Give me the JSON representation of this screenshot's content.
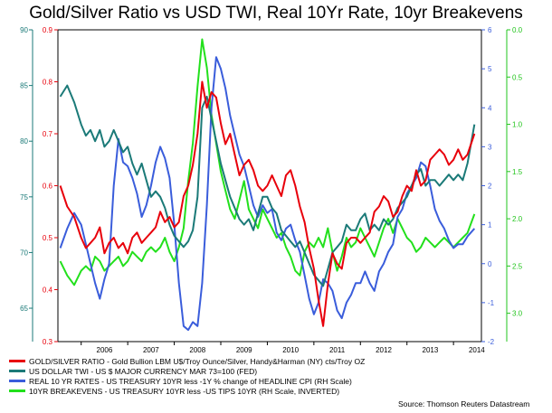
{
  "title": "Gold/Silver Ratio vs USD TWI, Real 10Yr Rate, 10yr Breakevens",
  "source": "Source: Thomson Reuters Datastream",
  "colors": {
    "gold_silver": "#e8000b",
    "usd_twi": "#1b7a78",
    "real_rate": "#3a5ddb",
    "breakevens": "#22e01c",
    "outer_axis_left": "#1b7a78",
    "inner_axis_left": "#e8000b",
    "inner_axis_right": "#3a5ddb",
    "outer_axis_right": "#22c41c"
  },
  "legend": [
    {
      "label": "GOLD/SILVER RATIO - Gold Bullion LBM U$/Troy Ounce/Silver, Handy&Harman (NY) cts/Troy OZ",
      "color": "#e8000b"
    },
    {
      "label": "US DOLLAR TWI - US $ MAJOR CURRENCY MAR 73=100 (FED)",
      "color": "#1b7a78"
    },
    {
      "label": "REAL 10 YR RATES - US TREASURY 10YR less -1Y % change of HEADLINE CPI  (RH Scale)",
      "color": "#3a5ddb"
    },
    {
      "label": "10YR BREAKEVENS - US TREASURY 10YR less -US TIPS 10YR (RH Scale, INVERTED)",
      "color": "#22e01c"
    }
  ],
  "chart_data": {
    "type": "line",
    "x_tick_labels": [
      "2006",
      "2007",
      "2008",
      "2009",
      "2010",
      "2011",
      "2012",
      "2013",
      "2014"
    ],
    "x_range": [
      2005.5,
      2014.6
    ],
    "axes": {
      "outer_left": {
        "series": "US DOLLAR TWI",
        "range": [
          62,
          90
        ],
        "ticks": [
          "90",
          "85",
          "80",
          "75",
          "70",
          "65"
        ]
      },
      "inner_left": {
        "series": "GOLD/SILVER RATIO",
        "range": [
          0.3,
          0.9
        ],
        "ticks": [
          "0.9",
          "0.8",
          "0.7",
          "0.6",
          "0.5",
          "0.4",
          "0.3"
        ]
      },
      "inner_right": {
        "series": "REAL 10 YR RATES",
        "range": [
          -2,
          6
        ],
        "ticks": [
          "6",
          "5",
          "4",
          "3",
          "2",
          "1",
          "0",
          "-1",
          "-2"
        ]
      },
      "outer_right": {
        "series": "10YR BREAKEVENS",
        "range": [
          0.0,
          3.3
        ],
        "inverted": true,
        "ticks": [
          "0.0",
          "0.5",
          "1.0",
          "1.5",
          "2.0",
          "2.5",
          "3.0"
        ]
      }
    },
    "grid": false,
    "series": [
      {
        "name": "GOLD/SILVER RATIO - Gold Bullion LBM U$/Troy Ounce/Silver, Handy&Harman (NY) cts/Troy OZ",
        "axis": "inner_left",
        "x": [
          2005.55,
          2005.7,
          2005.85,
          2006.0,
          2006.1,
          2006.2,
          2006.3,
          2006.4,
          2006.5,
          2006.6,
          2006.7,
          2006.8,
          2006.9,
          2007.0,
          2007.1,
          2007.2,
          2007.3,
          2007.4,
          2007.5,
          2007.6,
          2007.7,
          2007.8,
          2007.9,
          2008.0,
          2008.1,
          2008.2,
          2008.3,
          2008.4,
          2008.5,
          2008.6,
          2008.7,
          2008.8,
          2008.9,
          2009.0,
          2009.1,
          2009.2,
          2009.3,
          2009.4,
          2009.5,
          2009.6,
          2009.7,
          2009.8,
          2009.9,
          2010.0,
          2010.1,
          2010.2,
          2010.3,
          2010.4,
          2010.5,
          2010.6,
          2010.7,
          2010.8,
          2010.9,
          2011.0,
          2011.1,
          2011.2,
          2011.3,
          2011.4,
          2011.5,
          2011.6,
          2011.7,
          2011.8,
          2011.9,
          2012.0,
          2012.1,
          2012.2,
          2012.3,
          2012.4,
          2012.5,
          2012.6,
          2012.7,
          2012.8,
          2012.9,
          2013.0,
          2013.1,
          2013.2,
          2013.3,
          2013.4,
          2013.5,
          2013.6,
          2013.7,
          2013.8,
          2013.9,
          2014.0,
          2014.1,
          2014.2,
          2014.3,
          2014.45
        ],
        "y": [
          0.6,
          0.56,
          0.54,
          0.5,
          0.48,
          0.49,
          0.5,
          0.52,
          0.47,
          0.49,
          0.5,
          0.48,
          0.49,
          0.47,
          0.5,
          0.51,
          0.49,
          0.5,
          0.51,
          0.52,
          0.55,
          0.53,
          0.54,
          0.52,
          0.53,
          0.58,
          0.6,
          0.64,
          0.7,
          0.8,
          0.75,
          0.78,
          0.77,
          0.72,
          0.68,
          0.7,
          0.66,
          0.62,
          0.64,
          0.65,
          0.63,
          0.6,
          0.59,
          0.6,
          0.62,
          0.6,
          0.58,
          0.62,
          0.63,
          0.6,
          0.56,
          0.53,
          0.48,
          0.44,
          0.38,
          0.33,
          0.41,
          0.47,
          0.45,
          0.44,
          0.49,
          0.5,
          0.5,
          0.49,
          0.5,
          0.51,
          0.55,
          0.56,
          0.58,
          0.57,
          0.54,
          0.55,
          0.58,
          0.6,
          0.59,
          0.63,
          0.6,
          0.61,
          0.65,
          0.66,
          0.67,
          0.66,
          0.64,
          0.65,
          0.67,
          0.65,
          0.66,
          0.7
        ]
      },
      {
        "name": "US DOLLAR TWI - US $ MAJOR CURRENCY MAR 73=100 (FED)",
        "axis": "outer_left",
        "x": [
          2005.55,
          2005.7,
          2005.85,
          2006.0,
          2006.1,
          2006.2,
          2006.3,
          2006.4,
          2006.5,
          2006.6,
          2006.7,
          2006.8,
          2006.9,
          2007.0,
          2007.1,
          2007.2,
          2007.3,
          2007.4,
          2007.5,
          2007.6,
          2007.7,
          2007.8,
          2007.9,
          2008.0,
          2008.1,
          2008.2,
          2008.3,
          2008.4,
          2008.5,
          2008.6,
          2008.7,
          2008.8,
          2008.9,
          2009.0,
          2009.1,
          2009.2,
          2009.3,
          2009.4,
          2009.5,
          2009.6,
          2009.7,
          2009.8,
          2009.9,
          2010.0,
          2010.1,
          2010.2,
          2010.3,
          2010.4,
          2010.5,
          2010.6,
          2010.7,
          2010.8,
          2010.9,
          2011.0,
          2011.1,
          2011.2,
          2011.3,
          2011.4,
          2011.5,
          2011.6,
          2011.7,
          2011.8,
          2011.9,
          2012.0,
          2012.1,
          2012.2,
          2012.3,
          2012.4,
          2012.5,
          2012.6,
          2012.7,
          2012.8,
          2012.9,
          2013.0,
          2013.1,
          2013.2,
          2013.3,
          2013.4,
          2013.5,
          2013.6,
          2013.7,
          2013.8,
          2013.9,
          2014.0,
          2014.1,
          2014.2,
          2014.3,
          2014.45
        ],
        "y": [
          84.0,
          85.0,
          83.5,
          81.5,
          80.5,
          81.0,
          80.0,
          81.0,
          79.5,
          80.0,
          81.0,
          80.0,
          79.0,
          79.5,
          78.0,
          77.0,
          78.0,
          76.5,
          75.0,
          75.5,
          75.0,
          74.0,
          72.5,
          71.5,
          71.0,
          70.5,
          71.0,
          72.0,
          75.0,
          83.0,
          84.0,
          82.0,
          80.0,
          78.0,
          76.5,
          75.0,
          74.0,
          73.0,
          72.5,
          73.0,
          72.0,
          73.5,
          75.0,
          75.0,
          74.0,
          73.5,
          72.0,
          71.5,
          71.0,
          70.5,
          71.0,
          70.0,
          69.0,
          68.0,
          67.5,
          67.0,
          68.5,
          70.0,
          70.5,
          71.0,
          72.5,
          72.0,
          72.0,
          73.0,
          73.5,
          72.0,
          72.5,
          72.0,
          73.0,
          72.5,
          73.0,
          74.0,
          74.5,
          75.0,
          76.0,
          77.0,
          77.5,
          76.0,
          76.5,
          76.5,
          76.0,
          76.5,
          77.0,
          76.5,
          77.0,
          76.5,
          78.0,
          81.5
        ]
      },
      {
        "name": "REAL 10 YR RATES - US TREASURY 10YR less -1Y % change of HEADLINE CPI  (RH Scale)",
        "axis": "inner_right",
        "x": [
          2005.55,
          2005.7,
          2005.85,
          2006.0,
          2006.1,
          2006.2,
          2006.3,
          2006.4,
          2006.5,
          2006.6,
          2006.7,
          2006.8,
          2006.9,
          2007.0,
          2007.1,
          2007.2,
          2007.3,
          2007.4,
          2007.5,
          2007.6,
          2007.7,
          2007.8,
          2007.9,
          2008.0,
          2008.1,
          2008.2,
          2008.3,
          2008.4,
          2008.5,
          2008.6,
          2008.7,
          2008.8,
          2008.9,
          2009.0,
          2009.1,
          2009.2,
          2009.3,
          2009.4,
          2009.5,
          2009.6,
          2009.7,
          2009.8,
          2009.9,
          2010.0,
          2010.1,
          2010.2,
          2010.3,
          2010.4,
          2010.5,
          2010.6,
          2010.7,
          2010.8,
          2010.9,
          2011.0,
          2011.1,
          2011.2,
          2011.3,
          2011.4,
          2011.5,
          2011.6,
          2011.7,
          2011.8,
          2011.9,
          2012.0,
          2012.1,
          2012.2,
          2012.3,
          2012.4,
          2012.5,
          2012.6,
          2012.7,
          2012.8,
          2012.9,
          2013.0,
          2013.1,
          2013.2,
          2013.3,
          2013.4,
          2013.5,
          2013.6,
          2013.7,
          2013.8,
          2013.9,
          2014.0,
          2014.1,
          2014.2,
          2014.3,
          2014.45
        ],
        "y": [
          0.4,
          0.9,
          1.3,
          1.0,
          0.5,
          0.0,
          -0.5,
          -0.9,
          -0.4,
          0.0,
          2.0,
          3.2,
          2.6,
          2.5,
          2.2,
          1.8,
          1.2,
          1.5,
          2.0,
          2.6,
          3.0,
          2.7,
          2.2,
          1.0,
          -0.5,
          -1.6,
          -1.7,
          -1.5,
          -1.6,
          -0.5,
          1.5,
          4.0,
          5.3,
          5.0,
          4.5,
          3.8,
          3.3,
          2.8,
          2.5,
          2.0,
          1.5,
          1.2,
          1.5,
          1.3,
          1.4,
          0.8,
          0.6,
          0.9,
          1.0,
          0.6,
          0.3,
          -0.3,
          -0.9,
          -1.3,
          -1.0,
          -0.4,
          -0.5,
          -0.7,
          -1.2,
          -1.4,
          -1.0,
          -0.8,
          -0.5,
          -0.5,
          -0.2,
          -0.5,
          -0.7,
          -0.2,
          0.0,
          0.3,
          0.5,
          1.2,
          1.4,
          1.8,
          2.0,
          2.2,
          2.6,
          2.5,
          2.0,
          1.4,
          1.1,
          0.9,
          0.6,
          0.4,
          0.5,
          0.5,
          0.7,
          0.9
        ]
      },
      {
        "name": "10YR BREAKEVENS - US TREASURY 10YR less -US TIPS 10YR (RH Scale, INVERTED)",
        "axis": "outer_right",
        "x": [
          2005.55,
          2005.7,
          2005.85,
          2006.0,
          2006.1,
          2006.2,
          2006.3,
          2006.4,
          2006.5,
          2006.6,
          2006.7,
          2006.8,
          2006.9,
          2007.0,
          2007.1,
          2007.2,
          2007.3,
          2007.4,
          2007.5,
          2007.6,
          2007.7,
          2007.8,
          2007.9,
          2008.0,
          2008.1,
          2008.2,
          2008.3,
          2008.4,
          2008.5,
          2008.6,
          2008.7,
          2008.8,
          2008.9,
          2009.0,
          2009.1,
          2009.2,
          2009.3,
          2009.4,
          2009.5,
          2009.6,
          2009.7,
          2009.8,
          2009.9,
          2010.0,
          2010.1,
          2010.2,
          2010.3,
          2010.4,
          2010.5,
          2010.6,
          2010.7,
          2010.8,
          2010.9,
          2011.0,
          2011.1,
          2011.2,
          2011.3,
          2011.4,
          2011.5,
          2011.6,
          2011.7,
          2011.8,
          2011.9,
          2012.0,
          2012.1,
          2012.2,
          2012.3,
          2012.4,
          2012.5,
          2012.6,
          2012.7,
          2012.8,
          2012.9,
          2013.0,
          2013.1,
          2013.2,
          2013.3,
          2013.4,
          2013.5,
          2013.6,
          2013.7,
          2013.8,
          2013.9,
          2014.0,
          2014.1,
          2014.2,
          2014.3,
          2014.45
        ],
        "y": [
          2.45,
          2.6,
          2.7,
          2.55,
          2.5,
          2.55,
          2.4,
          2.45,
          2.55,
          2.5,
          2.45,
          2.4,
          2.5,
          2.45,
          2.35,
          2.4,
          2.45,
          2.35,
          2.3,
          2.35,
          2.3,
          2.2,
          2.35,
          2.45,
          2.3,
          2.1,
          1.6,
          1.2,
          0.6,
          0.1,
          0.4,
          0.9,
          1.2,
          1.5,
          1.7,
          1.9,
          2.0,
          1.8,
          1.6,
          1.9,
          2.0,
          2.1,
          1.9,
          2.0,
          2.1,
          2.2,
          2.15,
          2.3,
          2.4,
          2.55,
          2.6,
          2.35,
          2.25,
          2.3,
          2.2,
          2.3,
          2.1,
          2.35,
          2.55,
          2.4,
          2.2,
          2.3,
          2.25,
          2.1,
          2.2,
          2.3,
          2.4,
          2.25,
          2.1,
          2.0,
          2.15,
          2.0,
          2.1,
          2.2,
          2.25,
          2.35,
          2.3,
          2.2,
          2.25,
          2.3,
          2.25,
          2.2,
          2.25,
          2.3,
          2.25,
          2.2,
          2.15,
          1.95
        ]
      }
    ]
  }
}
